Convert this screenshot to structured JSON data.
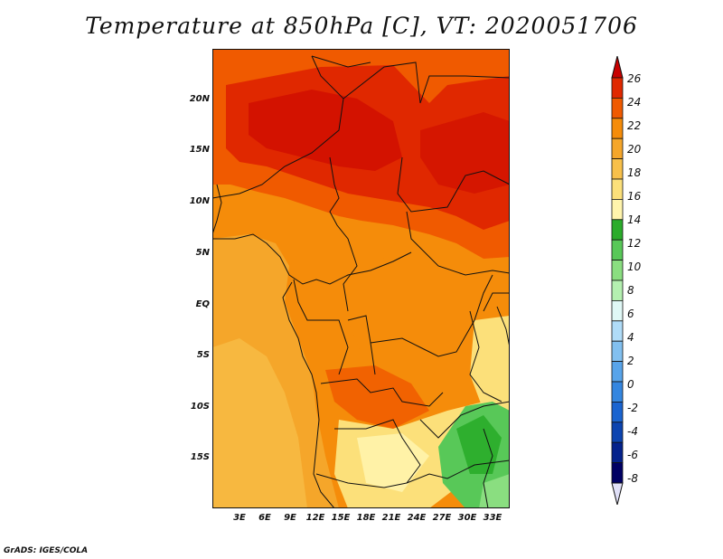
{
  "title": "Temperature at 850hPa [C], VT: 2020051706",
  "credit": "GrADS: IGES/COLA",
  "map": {
    "lat_labels": [
      "20N",
      "15N",
      "10N",
      "5N",
      "EQ",
      "5S",
      "10S",
      "15S"
    ],
    "lon_labels": [
      "3E",
      "6E",
      "9E",
      "12E",
      "15E",
      "18E",
      "21E",
      "24E",
      "27E",
      "30E",
      "33E"
    ],
    "lat_range": [
      -20,
      25
    ],
    "lon_range": [
      0,
      35
    ]
  },
  "colorbar": {
    "labels": [
      "26",
      "24",
      "22",
      "20",
      "18",
      "16",
      "14",
      "12",
      "10",
      "8",
      "6",
      "4",
      "2",
      "0",
      "-2",
      "-4",
      "-6",
      "-8"
    ],
    "colors": [
      "#c80000",
      "#e02800",
      "#f05a00",
      "#f58c0a",
      "#f5a62a",
      "#f8c04a",
      "#fce07a",
      "#fff4ac",
      "#2aac2a",
      "#58c858",
      "#8ade80",
      "#b4f0b0",
      "#e0f8f6",
      "#b0dcf8",
      "#82c0f0",
      "#58a4ea",
      "#3486e0",
      "#1a64d0",
      "#0c44b0",
      "#04228c",
      "#000064",
      "#e0e0f8"
    ]
  }
}
